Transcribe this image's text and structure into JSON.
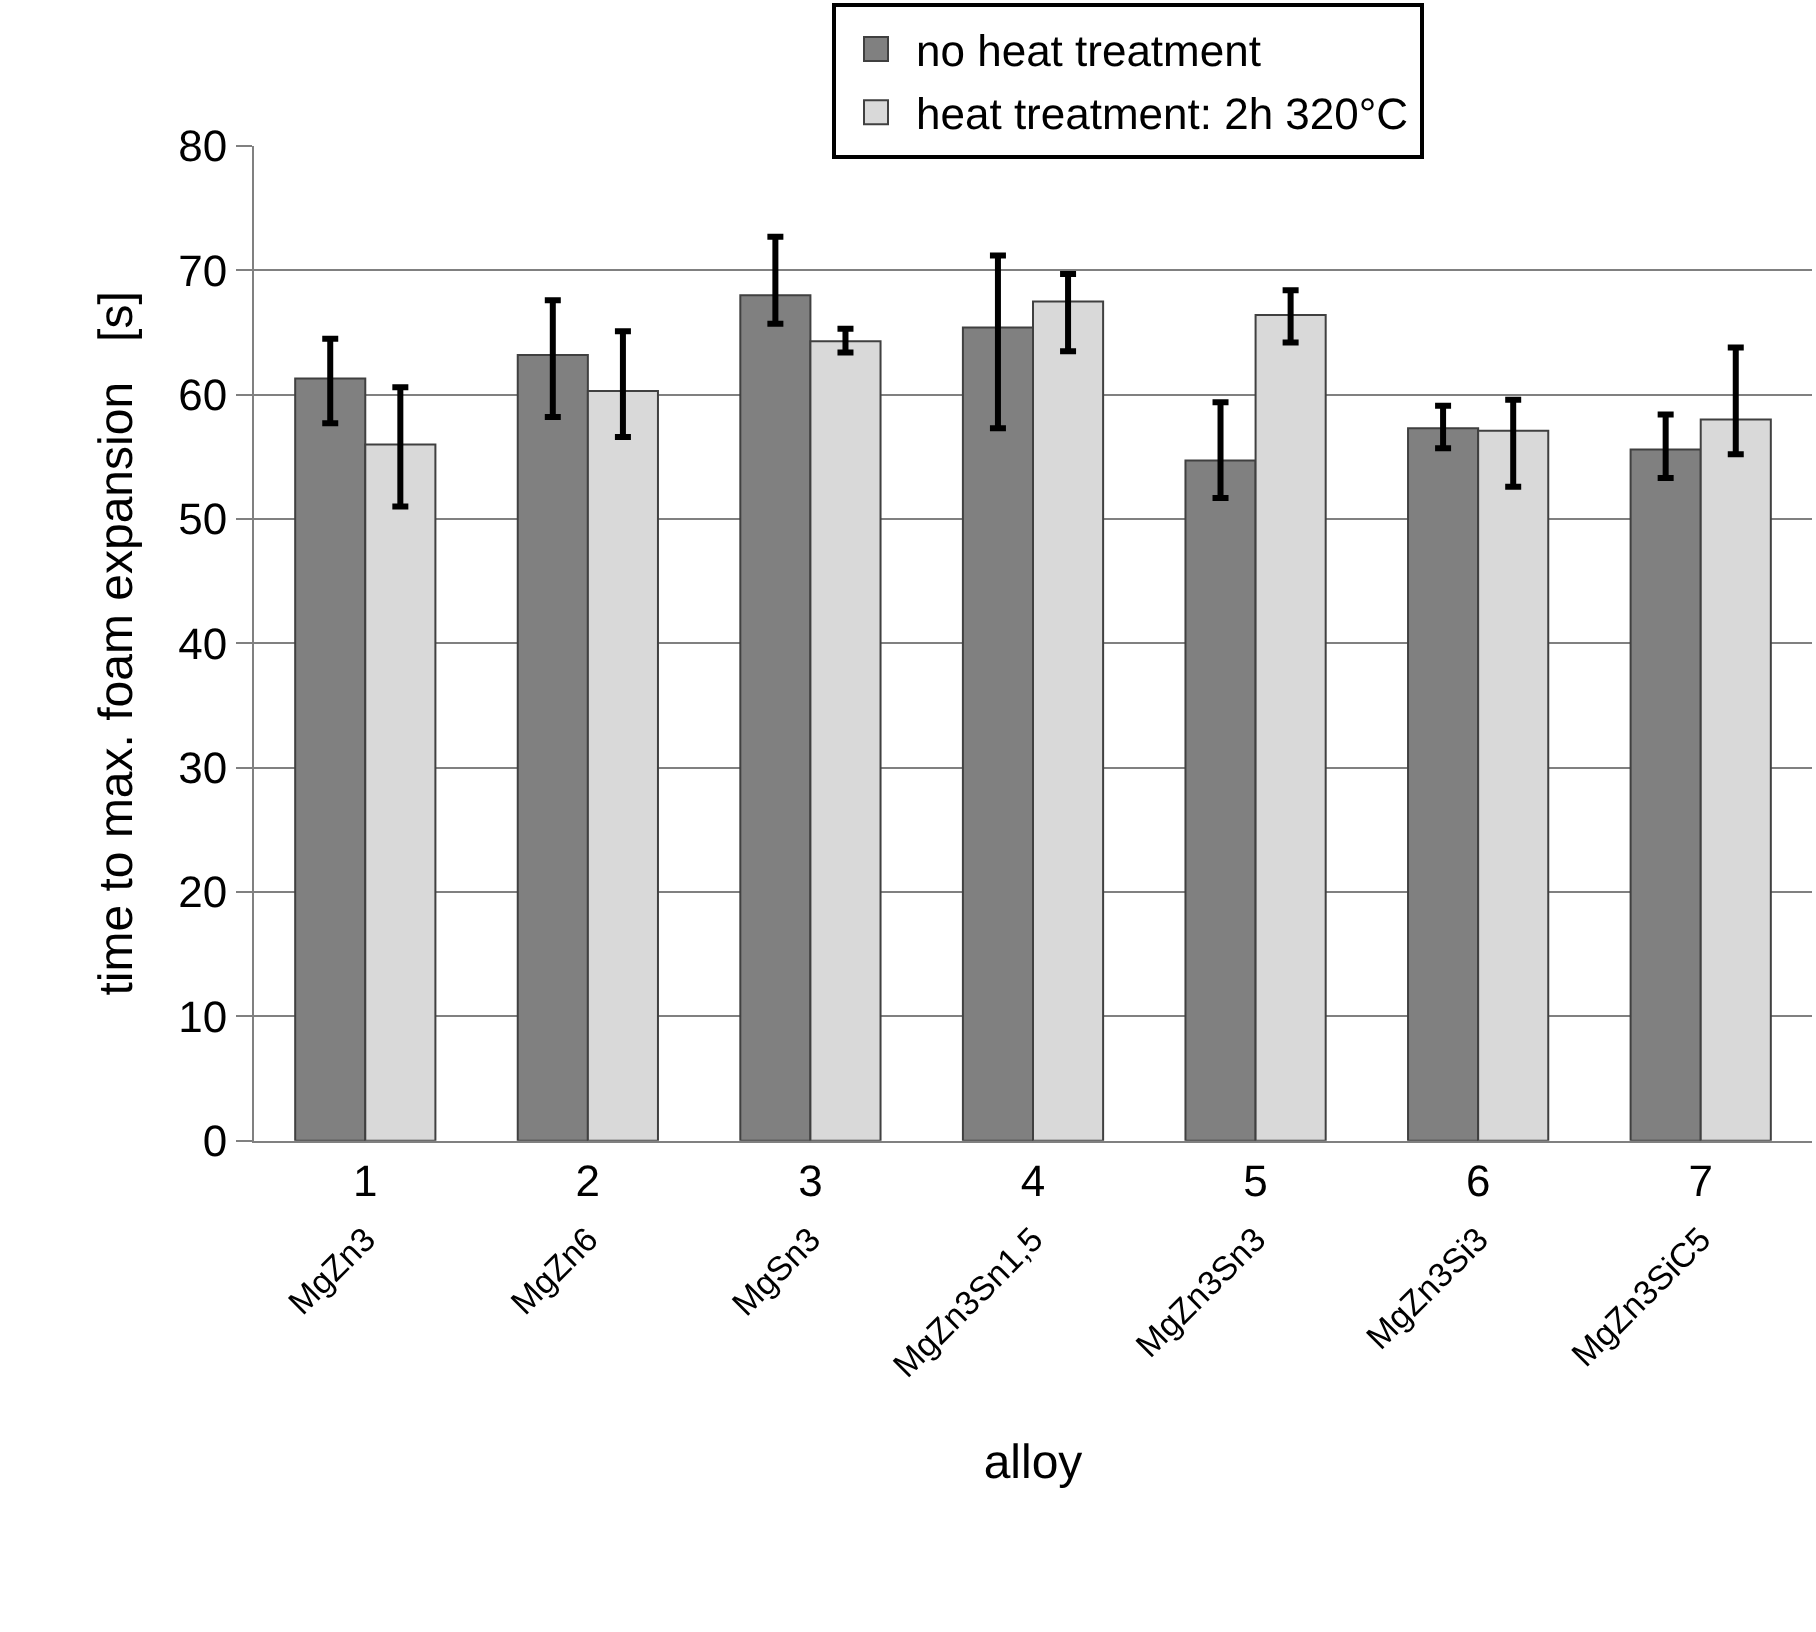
{
  "chart_data": {
    "type": "bar",
    "xlabel": "alloy",
    "ylabel": "time to max. foam expansion   [s]",
    "categories": [
      "1",
      "2",
      "3",
      "4",
      "5",
      "6",
      "7"
    ],
    "series": [
      {
        "name": "no heat treatment",
        "color": "#808080",
        "values": [
          61.3,
          63.2,
          68.0,
          65.4,
          54.7,
          57.3,
          55.6
        ],
        "errors": [
          [
            57.7,
            64.5
          ],
          [
            58.2,
            67.6
          ],
          [
            65.7,
            72.7
          ],
          [
            57.3,
            71.2
          ],
          [
            51.7,
            59.4
          ],
          [
            55.7,
            59.1
          ],
          [
            53.3,
            58.4
          ]
        ]
      },
      {
        "name": "heat treatment: 2h 320°C",
        "color": "#d9d9d9",
        "values": [
          56.0,
          60.3,
          64.3,
          67.5,
          66.4,
          57.1,
          58.0
        ],
        "errors": [
          [
            51.0,
            60.6
          ],
          [
            56.6,
            65.1
          ],
          [
            63.4,
            65.3
          ],
          [
            63.5,
            69.7
          ],
          [
            64.2,
            68.4
          ],
          [
            52.6,
            59.6
          ],
          [
            55.2,
            63.8
          ]
        ]
      }
    ],
    "ylim": [
      0,
      80
    ],
    "yticks": [
      0,
      10,
      20,
      30,
      40,
      50,
      60,
      70,
      80
    ],
    "grid": "y",
    "legend": "top right",
    "annotations": [
      "MgZn3",
      "MgZn6",
      "MgSn3",
      "MgZn3Sn1,5",
      "MgZn3Sn3",
      "MgZn3Si3",
      "MgZn3SiC5"
    ]
  }
}
